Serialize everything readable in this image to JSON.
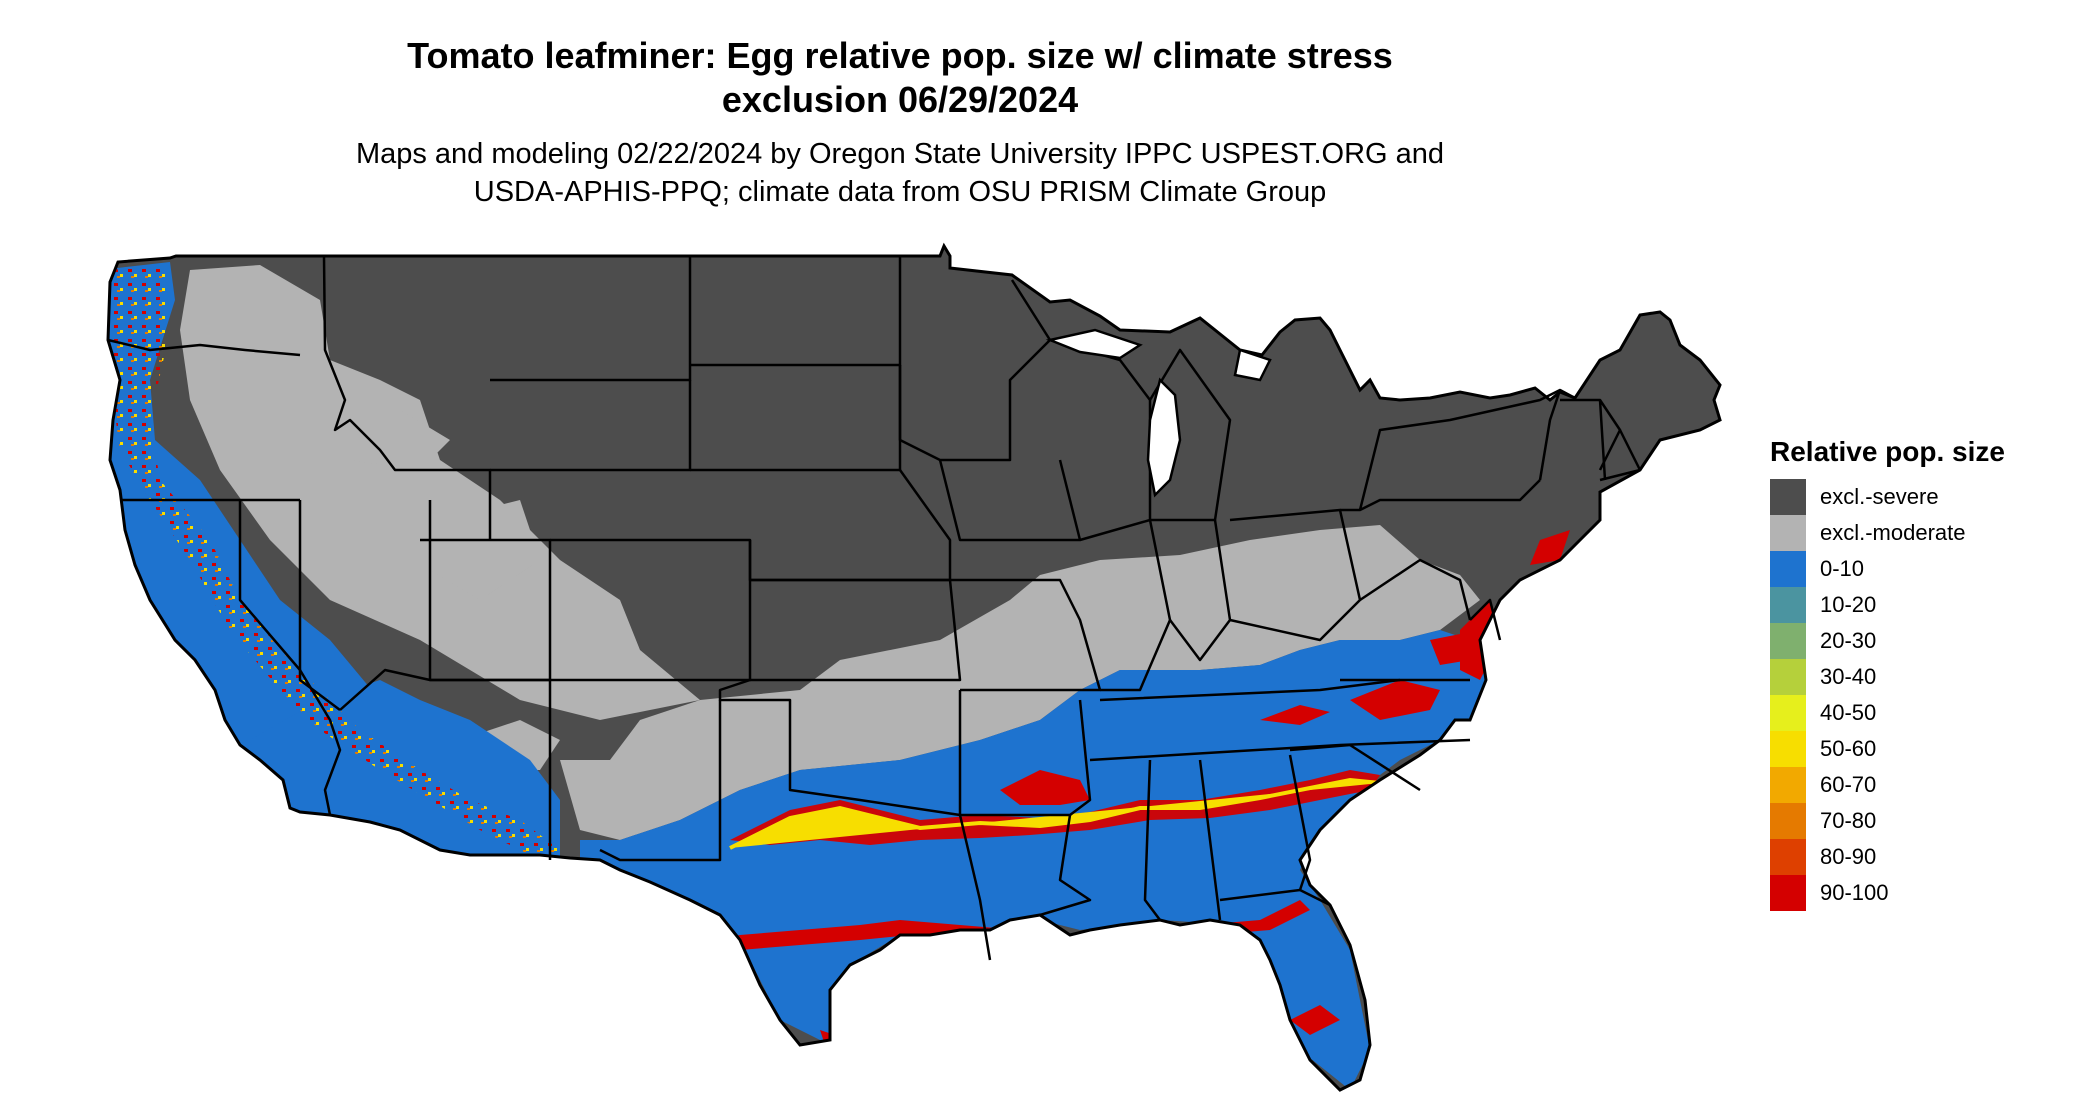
{
  "title": {
    "line1": "Tomato leafminer: Egg relative pop. size w/ climate stress",
    "line2": "exclusion 06/29/2024"
  },
  "subtitle": {
    "line1": "Maps and modeling 02/22/2024 by Oregon State University IPPC USPEST.ORG and",
    "line2": "USDA-APHIS-PPQ; climate data from OSU PRISM Climate Group"
  },
  "legend": {
    "title": "Relative pop. size",
    "items": [
      {
        "label": "excl.-severe",
        "color": "#4d4d4d"
      },
      {
        "label": "excl.-moderate",
        "color": "#b3b3b3"
      },
      {
        "label": "0-10",
        "color": "#1e73cf"
      },
      {
        "label": "10-20",
        "color": "#4b94a0"
      },
      {
        "label": "20-30",
        "color": "#7fb06e"
      },
      {
        "label": "30-40",
        "color": "#b5d03b"
      },
      {
        "label": "40-50",
        "color": "#e6ef1c"
      },
      {
        "label": "50-60",
        "color": "#f7de00"
      },
      {
        "label": "60-70",
        "color": "#f2a900"
      },
      {
        "label": "70-80",
        "color": "#e57a00"
      },
      {
        "label": "80-90",
        "color": "#de4000"
      },
      {
        "label": "90-100",
        "color": "#d40000"
      }
    ]
  },
  "map": {
    "region": "Contiguous United States",
    "state_borders": true
  }
}
